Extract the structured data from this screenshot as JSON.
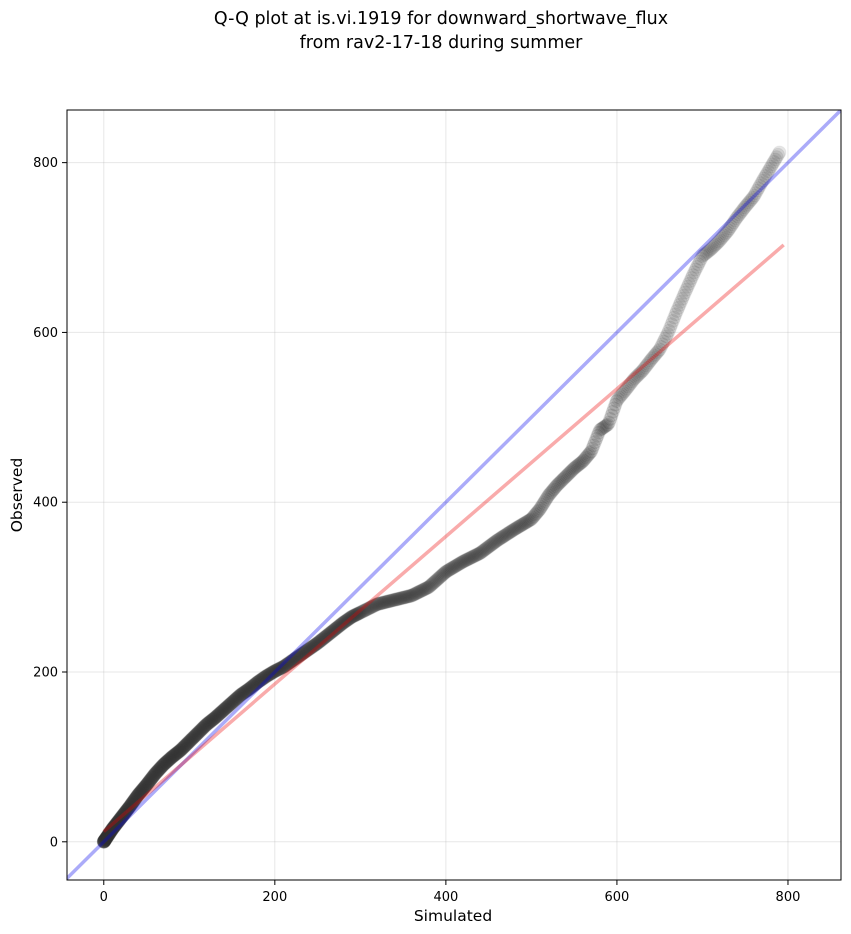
{
  "chart_data": {
    "type": "scatter",
    "title_line1": "Q-Q plot at is.vi.1919 for downward_shortwave_flux",
    "title_line2": "from rav2-17-18 during summer",
    "xlabel": "Simulated",
    "ylabel": "Observed",
    "xlim": [
      -43,
      862
    ],
    "ylim": [
      -45,
      862
    ],
    "xticks": [
      0,
      200,
      400,
      600,
      800
    ],
    "yticks": [
      0,
      200,
      400,
      600,
      800
    ],
    "grid": true,
    "reference_line": {
      "slope": 1,
      "intercept": 0,
      "color": "#0000ee"
    },
    "fit_line": {
      "x": [
        0,
        795
      ],
      "y": [
        12,
        703
      ],
      "color": "#ee0000"
    },
    "point_color": "#333333",
    "quantile_curve": {
      "x": [
        0,
        10,
        20,
        30,
        40,
        50,
        60,
        70,
        80,
        90,
        100,
        110,
        120,
        130,
        140,
        150,
        160,
        170,
        180,
        190,
        200,
        210,
        220,
        230,
        240,
        250,
        260,
        270,
        280,
        290,
        300,
        320,
        340,
        360,
        380,
        400,
        420,
        440,
        460,
        480,
        500,
        510,
        520,
        530,
        540,
        550,
        560,
        570,
        580,
        590,
        600,
        610,
        620,
        630,
        640,
        650,
        660,
        670,
        680,
        690,
        700,
        710,
        720,
        730,
        740,
        750,
        760,
        770,
        780,
        790
      ],
      "y": [
        0,
        15,
        28,
        41,
        55,
        67,
        80,
        91,
        100,
        108,
        118,
        128,
        138,
        146,
        155,
        164,
        173,
        180,
        188,
        195,
        201,
        206,
        213,
        220,
        227,
        234,
        242,
        250,
        258,
        265,
        270,
        280,
        285,
        290,
        300,
        318,
        330,
        340,
        355,
        368,
        380,
        392,
        408,
        420,
        430,
        440,
        448,
        460,
        485,
        492,
        520,
        532,
        545,
        555,
        568,
        580,
        600,
        625,
        648,
        670,
        690,
        698,
        708,
        720,
        735,
        748,
        760,
        778,
        795,
        812
      ]
    }
  }
}
